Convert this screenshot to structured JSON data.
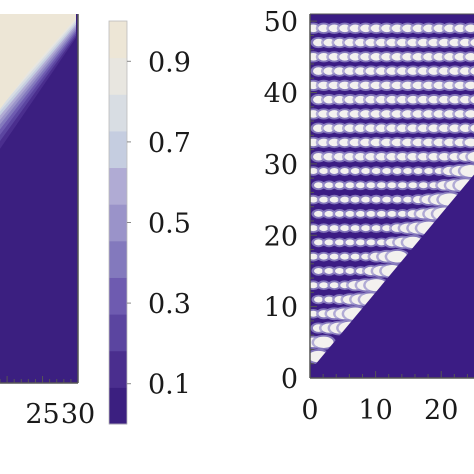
{
  "chart_data": [
    {
      "type": "heatmap",
      "title": "",
      "xlabel": "",
      "ylabel": "",
      "x_ticks": [
        "25",
        "30"
      ],
      "xlim_visible": [
        19,
        30
      ],
      "description_of_regions": "upper-left triangle near 1.0, lower-right region near 0.05 separated by a diagonal band of intermediate levels",
      "palette": [
        "#3b1f80",
        "#4a2e8e",
        "#5b45a0",
        "#6e5bb0",
        "#8379bd",
        "#9a93c9",
        "#b0abd4",
        "#c5cde0",
        "#d8dde3",
        "#e8e6e0",
        "#ede6d6"
      ]
    },
    {
      "type": "colorbar",
      "ticks": [
        "0.9",
        "0.7",
        "0.5",
        "0.3",
        "0.1"
      ],
      "tick_values": [
        0.9,
        0.7,
        0.5,
        0.3,
        0.1
      ],
      "range": [
        0,
        1
      ],
      "levels": 11
    },
    {
      "type": "heatmap",
      "title": "",
      "xlabel": "",
      "ylabel": "",
      "x_ticks": [
        "0",
        "10",
        "20"
      ],
      "y_ticks": [
        "0",
        "10",
        "20",
        "30",
        "40",
        "50"
      ],
      "xlim_visible": [
        0,
        25
      ],
      "ylim": [
        0,
        51
      ],
      "background_color": "#3b1c84",
      "blob_color": "#f3f1ef",
      "lobe_color": "#9b93cc"
    }
  ]
}
